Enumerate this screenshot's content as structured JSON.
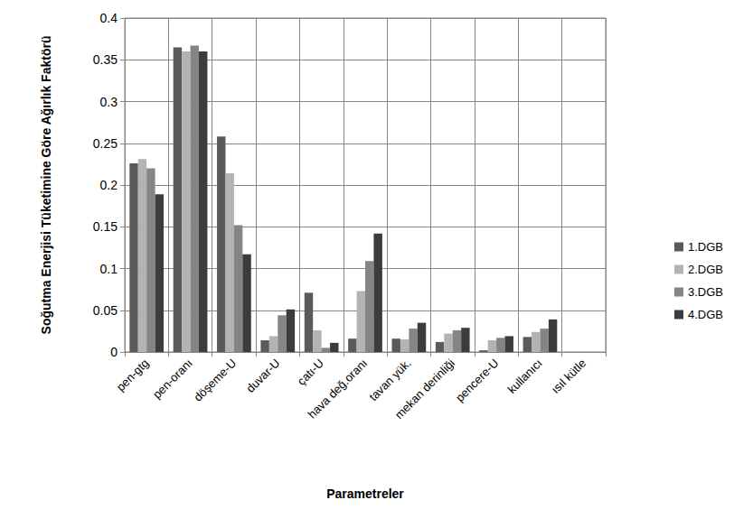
{
  "chart_data": {
    "type": "bar",
    "x_label": "Parametreler",
    "y_label": "Soğutma Enerjisi Tüketimine Göre Ağırlık Faktörü",
    "categories": [
      "pen-gtg",
      "pen-oranı",
      "döşeme-U",
      "duvar-U",
      "çatı-U",
      "hava değ.oranı",
      "tavan yük.",
      "mekan derinliği",
      "pencere-U",
      "kullanıcı",
      "ısıl kütle"
    ],
    "series": [
      {
        "name": "1.DGB",
        "color": "#5a5a5a",
        "values": [
          0.226,
          0.365,
          0.258,
          0.014,
          0.071,
          0.016,
          0.016,
          0.012,
          0.002,
          0.018,
          0
        ]
      },
      {
        "name": "2.DGB",
        "color": "#b3b3b3",
        "values": [
          0.231,
          0.36,
          0.214,
          0.019,
          0.026,
          0.073,
          0.015,
          0.022,
          0.014,
          0.024,
          0
        ]
      },
      {
        "name": "3.DGB",
        "color": "#858585",
        "values": [
          0.22,
          0.367,
          0.152,
          0.044,
          0.005,
          0.109,
          0.028,
          0.026,
          0.017,
          0.028,
          0
        ]
      },
      {
        "name": "4.DGB",
        "color": "#3c3c3c",
        "values": [
          0.189,
          0.36,
          0.117,
          0.051,
          0.011,
          0.142,
          0.035,
          0.029,
          0.019,
          0.039,
          0
        ]
      }
    ],
    "ylim": [
      0,
      0.4
    ],
    "yticks": [
      0,
      0.05,
      0.1,
      0.15,
      0.2,
      0.25,
      0.3,
      0.35,
      0.4
    ],
    "grid": true,
    "legend": "right"
  }
}
